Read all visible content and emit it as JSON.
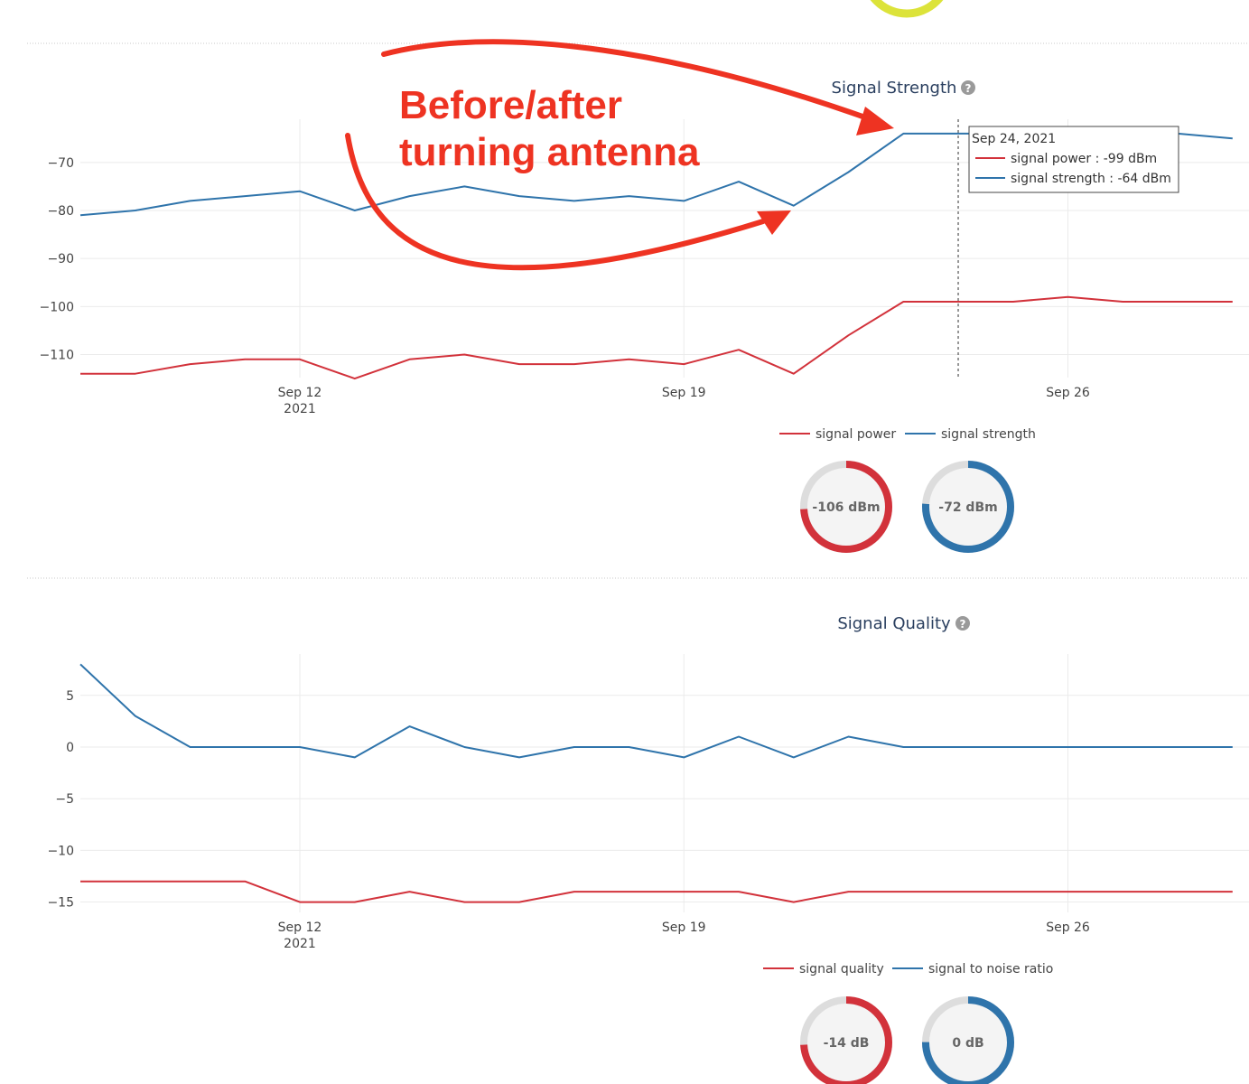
{
  "colors": {
    "signal_power": "#d2323b",
    "signal_strength": "#2f74ab",
    "annotation": "#ee3322",
    "top_gauge": "#dce33a",
    "gauge_track": "#dddddd",
    "gauge_fill": "#f4f4f4"
  },
  "annotation": {
    "line1": "Before/after",
    "line2": "turning antenna"
  },
  "help_icon_glyph": "?",
  "chart_data": [
    {
      "type": "line",
      "title": "Signal Strength",
      "title_icon": "question-circle-icon",
      "x": [
        "2021-09-08",
        "2021-09-09",
        "2021-09-10",
        "2021-09-11",
        "2021-09-12",
        "2021-09-13",
        "2021-09-14",
        "2021-09-15",
        "2021-09-16",
        "2021-09-17",
        "2021-09-18",
        "2021-09-19",
        "2021-09-20",
        "2021-09-21",
        "2021-09-22",
        "2021-09-23",
        "2021-09-24",
        "2021-09-25",
        "2021-09-26",
        "2021-09-27",
        "2021-09-28",
        "2021-09-29"
      ],
      "x_ticks": [
        {
          "value": "2021-09-12",
          "label": "Sep 12",
          "sublabel": "2021"
        },
        {
          "value": "2021-09-19",
          "label": "Sep 19"
        },
        {
          "value": "2021-09-26",
          "label": "Sep 26"
        }
      ],
      "ylim": [
        -114.8,
        -61
      ],
      "y_ticks": [
        {
          "value": -70,
          "label": "−70"
        },
        {
          "value": -80,
          "label": "−80"
        },
        {
          "value": -90,
          "label": "−90"
        },
        {
          "value": -100,
          "label": "−100"
        },
        {
          "value": -110,
          "label": "−110"
        }
      ],
      "grid": true,
      "legend_position": "bottom-center",
      "series": [
        {
          "name": "signal power",
          "color_key": "signal_power",
          "values": [
            -114,
            -114,
            -112,
            -111,
            -111,
            -115,
            -111,
            -110,
            -112,
            -112,
            -111,
            -112,
            -109,
            -114,
            -106,
            -99,
            -99,
            -99,
            -98,
            -99,
            -99,
            -99
          ]
        },
        {
          "name": "signal strength",
          "color_key": "signal_strength",
          "values": [
            -81,
            -80,
            -78,
            -77,
            -76,
            -80,
            -77,
            -75,
            -77,
            -78,
            -77,
            -78,
            -74,
            -79,
            -72,
            -64,
            -64,
            -64,
            -63,
            -63,
            -64,
            -65
          ]
        }
      ],
      "hover": {
        "date": "Sep 24, 2021",
        "index": 16,
        "lines": [
          {
            "label": "signal power : -99 dBm",
            "color_key": "signal_power"
          },
          {
            "label": "signal strength : -64 dBm",
            "color_key": "signal_strength"
          }
        ]
      },
      "gauges": [
        {
          "label": "-106 dBm",
          "fraction": 0.74,
          "color_key": "signal_power"
        },
        {
          "label": "-72 dBm",
          "fraction": 0.76,
          "color_key": "signal_strength"
        }
      ]
    },
    {
      "type": "line",
      "title": "Signal Quality",
      "title_icon": "question-circle-icon",
      "x": [
        "2021-09-08",
        "2021-09-09",
        "2021-09-10",
        "2021-09-11",
        "2021-09-12",
        "2021-09-13",
        "2021-09-14",
        "2021-09-15",
        "2021-09-16",
        "2021-09-17",
        "2021-09-18",
        "2021-09-19",
        "2021-09-20",
        "2021-09-21",
        "2021-09-22",
        "2021-09-23",
        "2021-09-24",
        "2021-09-25",
        "2021-09-26",
        "2021-09-27",
        "2021-09-28",
        "2021-09-29"
      ],
      "x_ticks": [
        {
          "value": "2021-09-12",
          "label": "Sep 12",
          "sublabel": "2021"
        },
        {
          "value": "2021-09-19",
          "label": "Sep 19"
        },
        {
          "value": "2021-09-26",
          "label": "Sep 26"
        }
      ],
      "ylim": [
        -16,
        9
      ],
      "y_ticks": [
        {
          "value": 5,
          "label": "5"
        },
        {
          "value": 0,
          "label": "0"
        },
        {
          "value": -5,
          "label": "−5"
        },
        {
          "value": -10,
          "label": "−10"
        },
        {
          "value": -15,
          "label": "−15"
        }
      ],
      "grid": true,
      "legend_position": "bottom-center",
      "series": [
        {
          "name": "signal quality",
          "color_key": "signal_power",
          "values": [
            -13,
            -13,
            -13,
            -13,
            -15,
            -15,
            -14,
            -15,
            -15,
            -14,
            -14,
            -14,
            -14,
            -15,
            -14,
            -14,
            -14,
            -14,
            -14,
            -14,
            -14,
            -14
          ]
        },
        {
          "name": "signal to noise ratio",
          "color_key": "signal_strength",
          "values": [
            8,
            3,
            0,
            0,
            0,
            -1,
            2,
            0,
            -1,
            0,
            0,
            -1,
            1,
            -1,
            1,
            0,
            0,
            0,
            0,
            0,
            0,
            0
          ]
        }
      ],
      "gauges": [
        {
          "label": "-14 dB",
          "fraction": 0.74,
          "color_key": "signal_power"
        },
        {
          "label": "0 dB",
          "fraction": 0.75,
          "color_key": "signal_strength"
        }
      ]
    }
  ]
}
